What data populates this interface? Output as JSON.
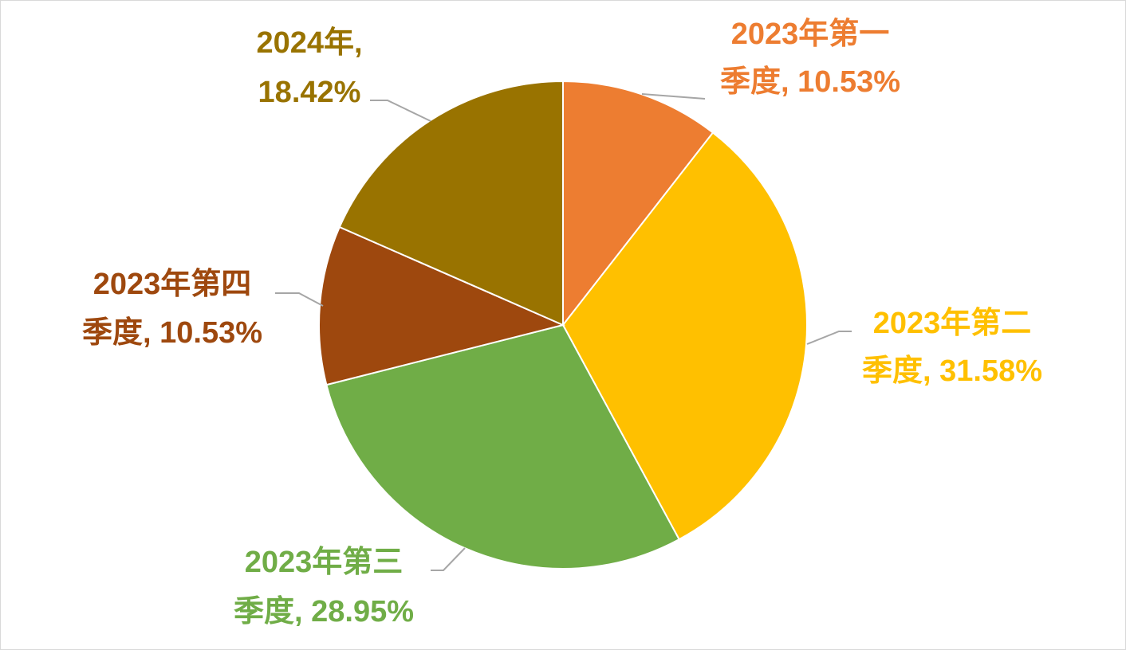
{
  "chart_data": {
    "type": "pie",
    "title": "",
    "legend": "none",
    "slices": [
      {
        "name": "2023年第一季度",
        "label_line1": "2023年第一",
        "label_line2": "季度, 10.53%",
        "value": 10.53,
        "color": "#ED7D31"
      },
      {
        "name": "2023年第二季度",
        "label_line1": "2023年第二",
        "label_line2": "季度, 31.58%",
        "value": 31.58,
        "color": "#FFC000"
      },
      {
        "name": "2023年第三季度",
        "label_line1": "2023年第三",
        "label_line2": "季度, 28.95%",
        "value": 28.95,
        "color": "#70AD47"
      },
      {
        "name": "2023年第四季度",
        "label_line1": "2023年第四",
        "label_line2": "季度, 10.53%",
        "value": 10.53,
        "color": "#9E480E"
      },
      {
        "name": "2024年",
        "label_line1": "2024年,",
        "label_line2": "18.42%",
        "value": 18.42,
        "color": "#997300"
      }
    ]
  }
}
